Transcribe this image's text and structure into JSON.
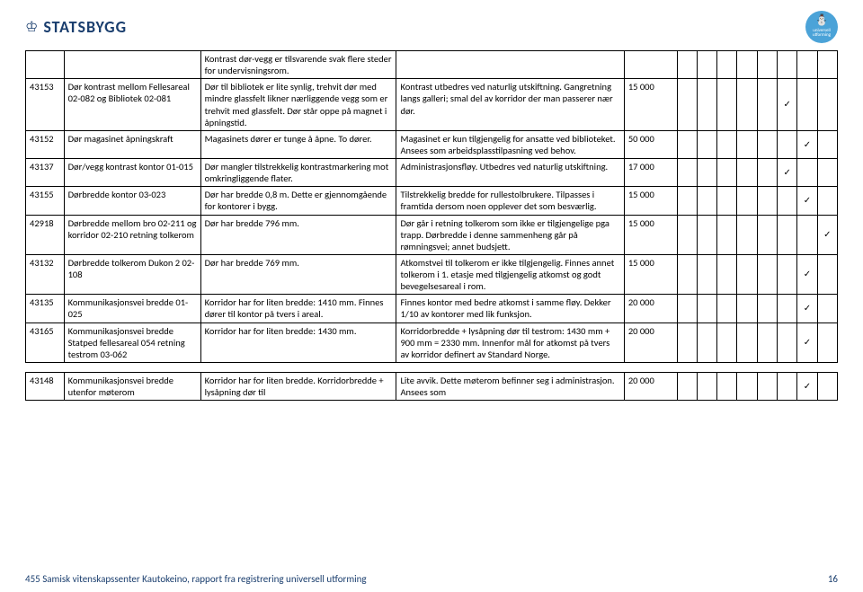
{
  "header": {
    "org_name": "STATSBYGG",
    "badge_line1": "universell",
    "badge_line2": "utforming"
  },
  "rows": [
    {
      "id": "",
      "title": "",
      "desc": "Kontrast dør-vegg er tilsvarende svak flere steder for undervisningsrom.",
      "note": "",
      "cost": "",
      "checks": [
        "",
        "",
        "",
        "",
        "",
        "",
        "",
        ""
      ]
    },
    {
      "id": "43153",
      "title": "Dør kontrast mellom Fellesareal 02-082 og Bibliotek 02-081",
      "desc": "Dør til bibliotek er lite synlig, trehvit dør med mindre glassfelt likner nærliggende vegg som er trehvit med glassfelt. Dør står oppe på magnet i åpningstid.",
      "note": "Kontrast utbedres ved naturlig utskiftning. Gangretning langs galleri; smal del av korridor der man passerer nær dør.",
      "cost": "15 000",
      "checks": [
        "",
        "",
        "",
        "",
        "",
        "✓",
        "",
        ""
      ]
    },
    {
      "id": "43152",
      "title": "Dør magasinet åpningskraft",
      "desc": "Magasinets dører er tunge å åpne. To dører.",
      "note": "Magasinet er kun tilgjengelig for ansatte ved biblioteket. Ansees som arbeidsplasstilpasning ved behov.",
      "cost": "50 000",
      "checks": [
        "",
        "",
        "",
        "",
        "",
        "",
        "✓",
        ""
      ]
    },
    {
      "id": "43137",
      "title": "Dør/vegg kontrast kontor 01-015",
      "desc": "Dør mangler tilstrekkelig kontrastmarkering mot omkringliggende flater.",
      "note": "Administrasjonsfløy. Utbedres ved naturlig utskiftning.",
      "cost": "17 000",
      "checks": [
        "",
        "",
        "",
        "",
        "",
        "✓",
        "",
        ""
      ]
    },
    {
      "id": "43155",
      "title": "Dørbredde kontor 03-023",
      "desc": "Dør har bredde 0,8 m. Dette er gjennomgående for kontorer i bygg.",
      "note": "Tilstrekkelig bredde for rullestolbrukere. Tilpasses i framtida dersom noen opplever det som besværlig.",
      "cost": "15 000",
      "checks": [
        "",
        "",
        "",
        "",
        "",
        "",
        "✓",
        ""
      ]
    },
    {
      "id": "42918",
      "title": "Dørbredde mellom bro 02-211 og korridor 02-210 retning tolkerom",
      "desc": "Dør har bredde 796 mm.",
      "note": "Dør går i retning tolkerom som ikke er tilgjengelige pga trapp. Dørbredde i denne sammenheng går på rømningsvei; annet budsjett.",
      "cost": "15 000",
      "checks": [
        "",
        "",
        "",
        "",
        "",
        "",
        "",
        "✓"
      ]
    },
    {
      "id": "43132",
      "title": "Dørbredde tolkerom Dukon 2  02-108",
      "desc": "Dør har bredde 769 mm.",
      "note": "Atkomstvei til tolkerom er ikke tilgjengelig. Finnes annet tolkerom i 1. etasje med tilgjengelig atkomst og godt bevegelsesareal i rom.",
      "cost": "15 000",
      "checks": [
        "",
        "",
        "",
        "",
        "",
        "",
        "✓",
        ""
      ]
    },
    {
      "id": "43135",
      "title": "Kommunikasjonsvei bredde 01-025",
      "desc": "Korridor har for liten bredde: 1410 mm. Finnes dører til kontor på tvers i areal.",
      "note": "Finnes kontor med bedre atkomst i samme fløy. Dekker 1/10 av kontorer med lik funksjon.",
      "cost": "20 000",
      "checks": [
        "",
        "",
        "",
        "",
        "",
        "",
        "✓",
        ""
      ]
    },
    {
      "id": "43165",
      "title": "Kommunikasjonsvei bredde Statped fellesareal 054 retning testrom 03-062",
      "desc": "Korridor har for liten bredde: 1430 mm.",
      "note": "Korridorbredde + lysåpning dør til testrom: 1430 mm + 900 mm = 2330 mm. Innenfor mål for atkomst på tvers av korridor definert av Standard Norge.",
      "cost": "20 000",
      "checks": [
        "",
        "",
        "",
        "",
        "",
        "",
        "✓",
        ""
      ]
    }
  ],
  "rows2": [
    {
      "id": "43148",
      "title": "Kommunikasjonsvei bredde utenfor møterom",
      "desc": "Korridor har for liten bredde. Korridorbredde + lysåpning dør til",
      "note": "Lite avvik. Dette møterom befinner seg i administrasjon. Ansees som",
      "cost": "20 000",
      "checks": [
        "",
        "",
        "",
        "",
        "",
        "",
        "✓",
        ""
      ]
    }
  ],
  "footer": {
    "text": "455 Samisk vitenskapssenter Kautokeino, rapport fra registrering universell utforming",
    "page": "16"
  }
}
